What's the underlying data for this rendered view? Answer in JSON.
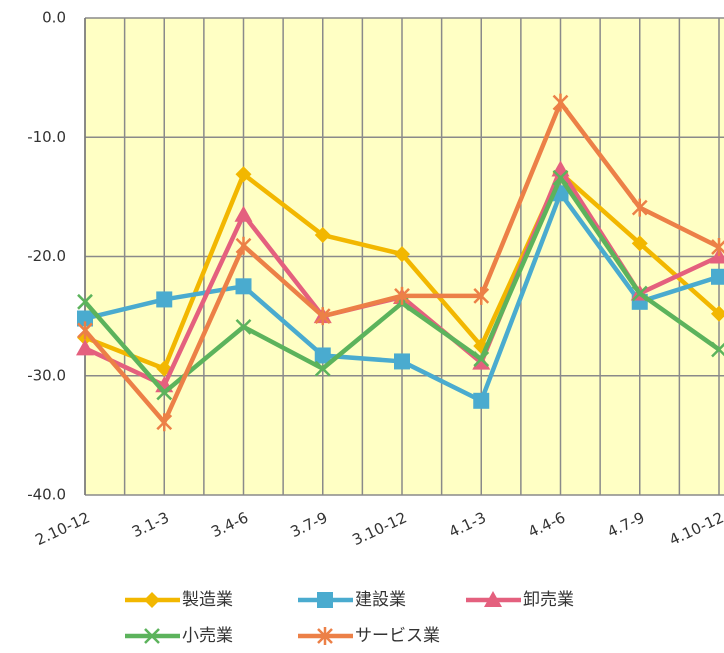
{
  "chart_data": {
    "type": "line",
    "categories": [
      "2.10-12",
      "3.1-3",
      "3.4-6",
      "3.7-9",
      "3.10-12",
      "4.1-3",
      "4.4-6",
      "4.7-9",
      "4.10-12"
    ],
    "ylim": [
      -40,
      0
    ],
    "yticks": [
      {
        "value": 0,
        "label": "0.0"
      },
      {
        "value": -10,
        "label": "-10.0"
      },
      {
        "value": -20,
        "label": "-20.0"
      },
      {
        "value": -30,
        "label": "-30.0"
      },
      {
        "value": -40,
        "label": "-40.0"
      }
    ],
    "grid": true,
    "series": [
      {
        "name": "製造業",
        "color": "#f2b700",
        "marker": "diamond",
        "values": [
          -26.8,
          -29.4,
          -13.1,
          -18.2,
          -19.8,
          -27.5,
          -13.0,
          -18.9,
          -24.8
        ]
      },
      {
        "name": "建設業",
        "color": "#4aabcf",
        "marker": "square",
        "values": [
          -25.2,
          -23.6,
          -22.5,
          -28.3,
          -28.8,
          -32.1,
          -14.7,
          -23.8,
          -21.7
        ]
      },
      {
        "name": "卸売業",
        "color": "#e4607e",
        "marker": "triangle",
        "values": [
          -27.7,
          -30.8,
          -16.5,
          -25.0,
          -23.4,
          -28.9,
          -12.7,
          -23.1,
          -20.0
        ]
      },
      {
        "name": "小売業",
        "color": "#5cb35c",
        "marker": "x",
        "values": [
          -23.8,
          -31.4,
          -25.9,
          -29.4,
          -23.9,
          -28.6,
          -13.4,
          -23.1,
          -27.8
        ]
      },
      {
        "name": "サービス業",
        "color": "#ec8047",
        "marker": "star",
        "values": [
          -26.2,
          -33.9,
          -19.1,
          -25.0,
          -23.3,
          -23.3,
          -7.1,
          -15.9,
          -19.2
        ]
      }
    ]
  }
}
